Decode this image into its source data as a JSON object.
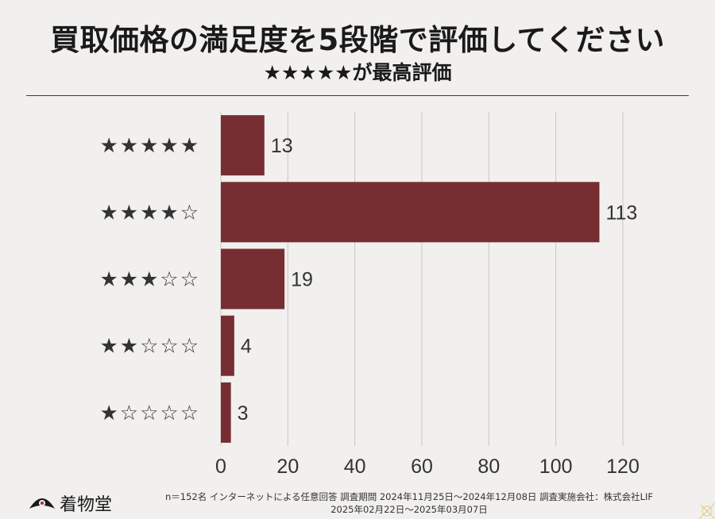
{
  "title": "買取価格の満足度を5段階で評価してください",
  "subtitle": "★★★★★が最高評価",
  "chart_data": {
    "type": "bar",
    "orientation": "horizontal",
    "categories": [
      "★★★★★",
      "★★★★☆",
      "★★★☆☆",
      "★★☆☆☆",
      "★☆☆☆☆"
    ],
    "values": [
      13,
      113,
      19,
      4,
      3
    ],
    "xlim": [
      0,
      120
    ],
    "xticks": [
      "0",
      "20",
      "40",
      "60",
      "80",
      "100",
      "120"
    ],
    "grid": "vertical",
    "bar_color": "#772e33",
    "gridline_color": "#c8c8c8"
  },
  "footer": {
    "line1": "n＝152名 インターネットによる任意回答 調査期間 2024年11月25日〜2024年12月08日 調査実施会社：株式会社LIF",
    "line2": "2025年02月22日〜2025年03月07日"
  },
  "logo": {
    "text": "着物堂"
  }
}
